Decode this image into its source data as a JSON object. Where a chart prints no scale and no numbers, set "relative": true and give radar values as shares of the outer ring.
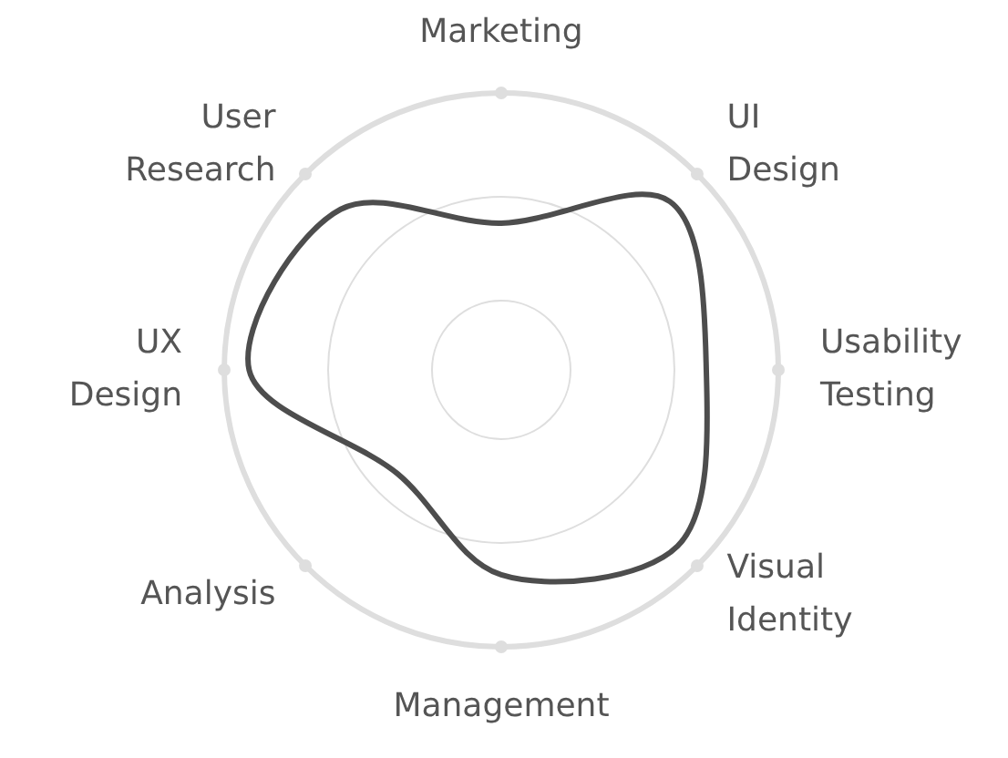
{
  "chart_data": {
    "type": "radar",
    "relative": true,
    "grid": true,
    "categories": [
      "Marketing",
      "UI Design",
      "Usability Testing",
      "Visual Identity",
      "Management",
      "Analysis",
      "UX Design",
      "User Research"
    ],
    "series": [
      {
        "color": "#4d4d4d",
        "values": [
          0.53,
          0.86,
          0.74,
          0.9,
          0.74,
          0.53,
          0.91,
          0.82
        ]
      }
    ]
  }
}
